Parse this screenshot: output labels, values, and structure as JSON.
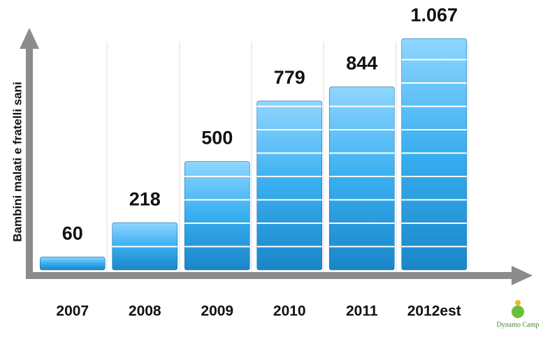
{
  "chart_data": {
    "type": "bar",
    "y_label": "Bambini malati e fratelli sani",
    "categories": [
      "2007",
      "2008",
      "2009",
      "2010",
      "2011",
      "2012est"
    ],
    "values": [
      60,
      218,
      500,
      779,
      844,
      1067
    ],
    "value_labels": [
      "60",
      "218",
      "500",
      "779",
      "844",
      "1.067"
    ],
    "color": "#2b9fe0",
    "ylim": [
      0,
      1100
    ],
    "logo": "Dynamo Camp"
  }
}
